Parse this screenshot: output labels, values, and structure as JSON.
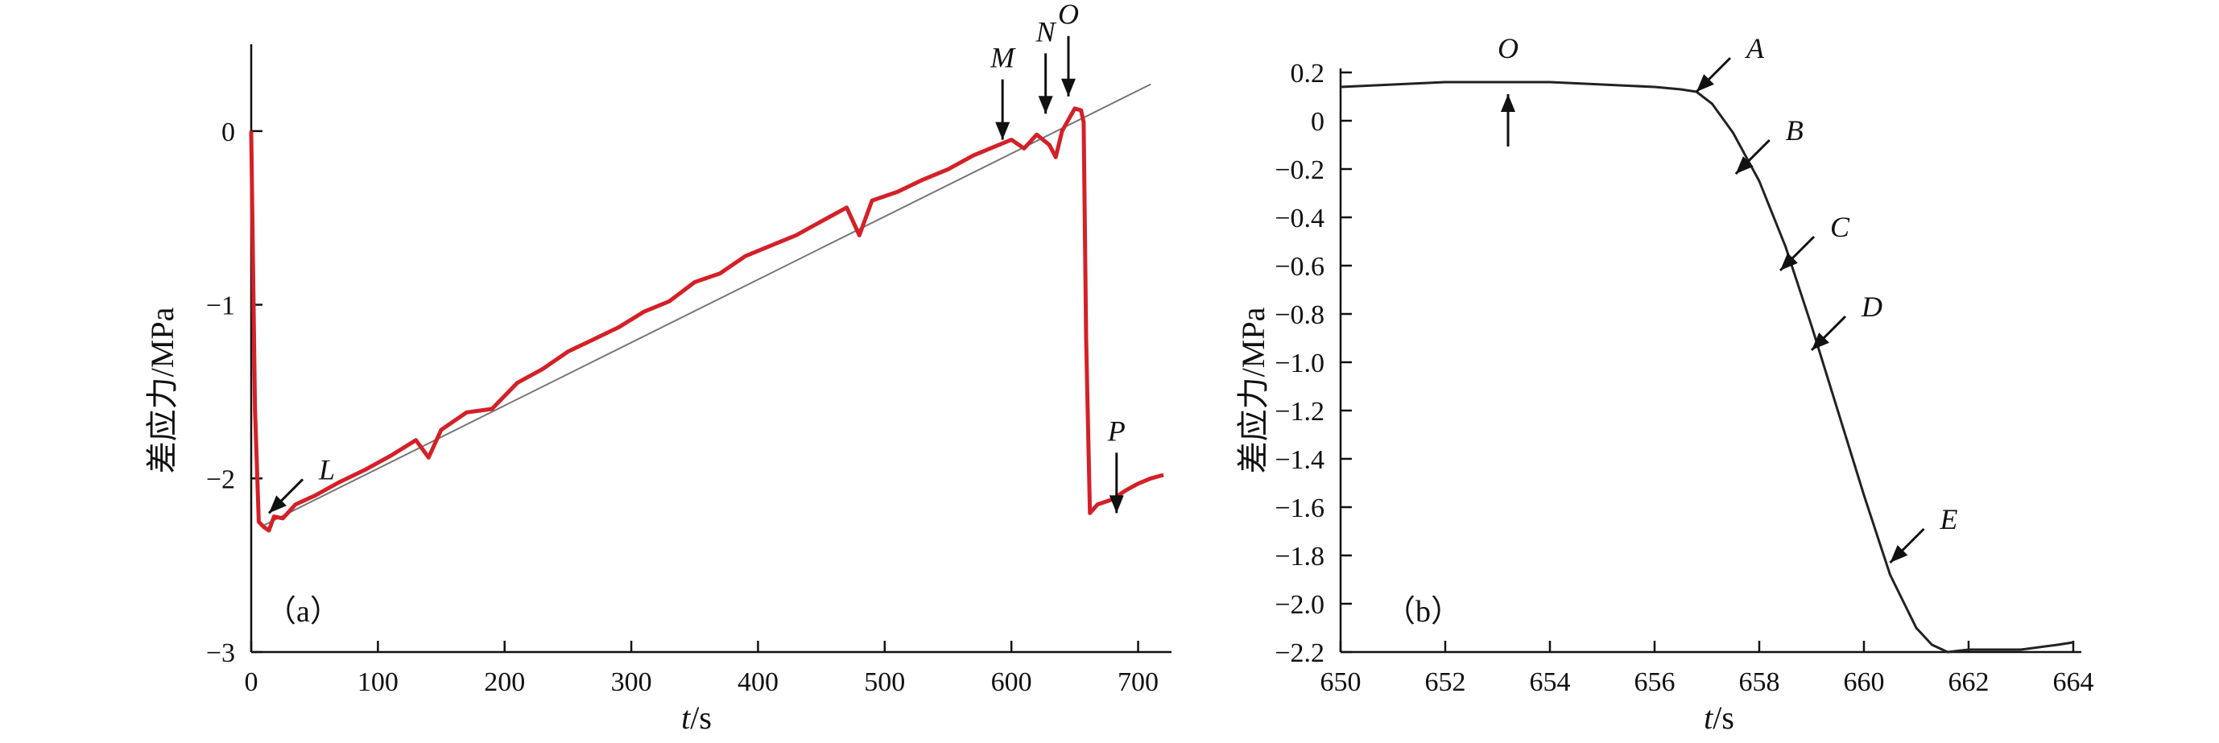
{
  "chart_data": [
    {
      "type": "line",
      "panel_label": "（a）",
      "xlabel_var": "t",
      "xlabel_unit": "/s",
      "ylabel": "差应力/MPa",
      "xlim": [
        0,
        720
      ],
      "ylim": [
        -3,
        0.5
      ],
      "xticks": [
        0,
        100,
        200,
        300,
        400,
        500,
        600,
        700
      ],
      "yticks": [
        -3,
        -2,
        -1,
        0
      ],
      "ytick_labels": [
        "−3",
        "−2",
        "−1",
        "0"
      ],
      "series_color": "#d42027",
      "fit_color": "#777777",
      "series": [
        {
          "name": "",
          "x": [
            0,
            3,
            6,
            10,
            14,
            18,
            25,
            35,
            50,
            70,
            90,
            110,
            130,
            140,
            150,
            170,
            190,
            210,
            230,
            250,
            270,
            290,
            310,
            330,
            350,
            370,
            390,
            410,
            430,
            450,
            470,
            480,
            490,
            510,
            530,
            550,
            570,
            590,
            600,
            610,
            620,
            630,
            635,
            640,
            650,
            655,
            657,
            659,
            662,
            668,
            680,
            690,
            700,
            710,
            720
          ],
          "y": [
            0.0,
            -1.6,
            -2.25,
            -2.28,
            -2.3,
            -2.22,
            -2.23,
            -2.15,
            -2.1,
            -2.02,
            -1.95,
            -1.87,
            -1.78,
            -1.88,
            -1.72,
            -1.62,
            -1.6,
            -1.45,
            -1.37,
            -1.27,
            -1.2,
            -1.13,
            -1.04,
            -0.98,
            -0.87,
            -0.82,
            -0.72,
            -0.66,
            -0.6,
            -0.52,
            -0.44,
            -0.6,
            -0.4,
            -0.35,
            -0.28,
            -0.22,
            -0.14,
            -0.08,
            -0.05,
            -0.1,
            -0.02,
            -0.08,
            -0.15,
            0.0,
            0.13,
            0.12,
            0.05,
            -1.2,
            -2.2,
            -2.15,
            -2.12,
            -2.07,
            -2.03,
            -2.0,
            -1.98
          ]
        }
      ],
      "fit_line": {
        "x": [
          10,
          710
        ],
        "y": [
          -2.27,
          0.27
        ]
      },
      "annotations": [
        {
          "text": "L",
          "x": 14,
          "y": -2.2,
          "direction": "down-left",
          "italic": false
        },
        {
          "text": "M",
          "x": 593,
          "y": -0.05,
          "direction": "down",
          "italic": true
        },
        {
          "text": "N",
          "x": 627,
          "y": 0.1,
          "direction": "down",
          "italic": true
        },
        {
          "text": "O",
          "x": 645,
          "y": 0.2,
          "direction": "down",
          "italic": true
        },
        {
          "text": "P",
          "x": 683,
          "y": -2.2,
          "direction": "down",
          "italic": true
        }
      ]
    },
    {
      "type": "line",
      "panel_label": "（b）",
      "xlabel_var": "t",
      "xlabel_unit": "/s",
      "ylabel": "差应力/MPa",
      "xlim": [
        650,
        664
      ],
      "ylim": [
        -2.2,
        0.2
      ],
      "xticks": [
        650,
        652,
        654,
        656,
        658,
        660,
        662,
        664
      ],
      "yticks": [
        0.2,
        0,
        -0.2,
        -0.4,
        -0.6,
        -0.8,
        -1.0,
        -1.2,
        -1.4,
        -1.6,
        -1.8,
        -2.0,
        -2.2
      ],
      "ytick_labels": [
        "0.2",
        "0",
        "−0.2",
        "−0.4",
        "−0.6",
        "−0.8",
        "−1.0",
        "−1.2",
        "−1.4",
        "−1.6",
        "−1.8",
        "−2.0",
        "−2.2"
      ],
      "series_color": "#222222",
      "series": [
        {
          "name": "",
          "x": [
            650,
            651,
            652,
            653,
            654,
            655,
            656,
            656.5,
            656.8,
            657.1,
            657.5,
            658,
            658.5,
            659,
            659.5,
            660,
            660.5,
            661,
            661.3,
            661.6,
            662,
            663,
            663.7,
            664
          ],
          "y": [
            0.14,
            0.15,
            0.16,
            0.16,
            0.16,
            0.15,
            0.14,
            0.13,
            0.12,
            0.07,
            -0.05,
            -0.25,
            -0.52,
            -0.85,
            -1.2,
            -1.55,
            -1.88,
            -2.1,
            -2.17,
            -2.2,
            -2.19,
            -2.19,
            -2.17,
            -2.16
          ]
        }
      ],
      "annotations": [
        {
          "text": "O",
          "x": 653.2,
          "y": 0.16,
          "direction": "up",
          "italic": true
        },
        {
          "text": "A",
          "x": 656.8,
          "y": 0.12,
          "direction": "down-left",
          "italic": true
        },
        {
          "text": "B",
          "x": 657.55,
          "y": -0.22,
          "direction": "down-left",
          "italic": true
        },
        {
          "text": "C",
          "x": 658.4,
          "y": -0.62,
          "direction": "down-left",
          "italic": true
        },
        {
          "text": "D",
          "x": 659.0,
          "y": -0.95,
          "direction": "down-left",
          "italic": true
        },
        {
          "text": "E",
          "x": 660.5,
          "y": -1.83,
          "direction": "down-left",
          "italic": true
        }
      ]
    }
  ]
}
